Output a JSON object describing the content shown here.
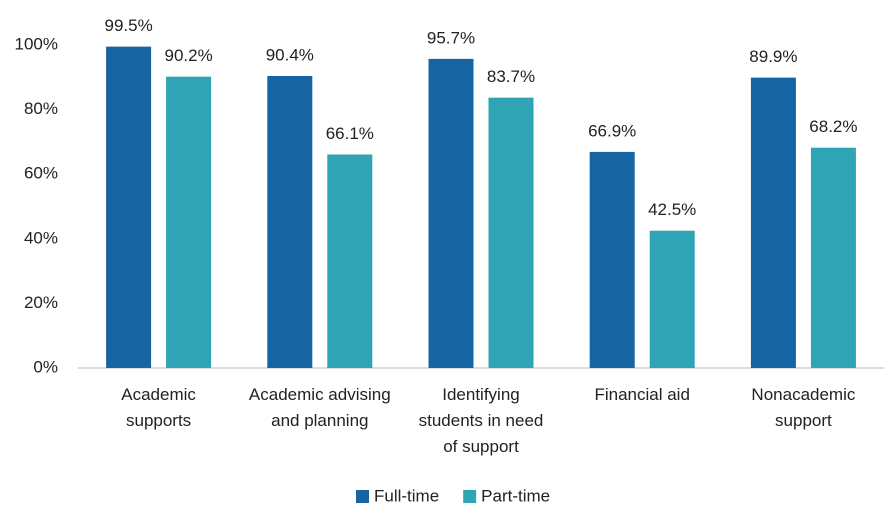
{
  "chart_data": {
    "type": "bar",
    "categories": [
      "Academic\nsupports",
      "Academic advising\nand planning",
      "Identifying\nstudents in need\nof support",
      "Financial aid",
      "Nonacademic\nsupport"
    ],
    "series": [
      {
        "name": "Full-time",
        "color": "#1764a3",
        "values": [
          99.5,
          90.4,
          95.7,
          66.9,
          89.9
        ],
        "value_labels": [
          "99.5%",
          "90.4%",
          "95.7%",
          "66.9%",
          "89.9%"
        ]
      },
      {
        "name": "Part-time",
        "color": "#2ea4b4",
        "values": [
          90.2,
          66.1,
          83.7,
          42.5,
          68.2
        ],
        "value_labels": [
          "90.2%",
          "66.1%",
          "83.7%",
          "42.5%",
          "68.2%"
        ]
      }
    ],
    "ylim": [
      0,
      100
    ],
    "yticks": [
      {
        "value": 0,
        "label": "0%"
      },
      {
        "value": 20,
        "label": "20%"
      },
      {
        "value": 40,
        "label": "40%"
      },
      {
        "value": 60,
        "label": "60%"
      },
      {
        "value": 80,
        "label": "80%"
      },
      {
        "value": 100,
        "label": "100%"
      }
    ],
    "legend": "bottom"
  }
}
